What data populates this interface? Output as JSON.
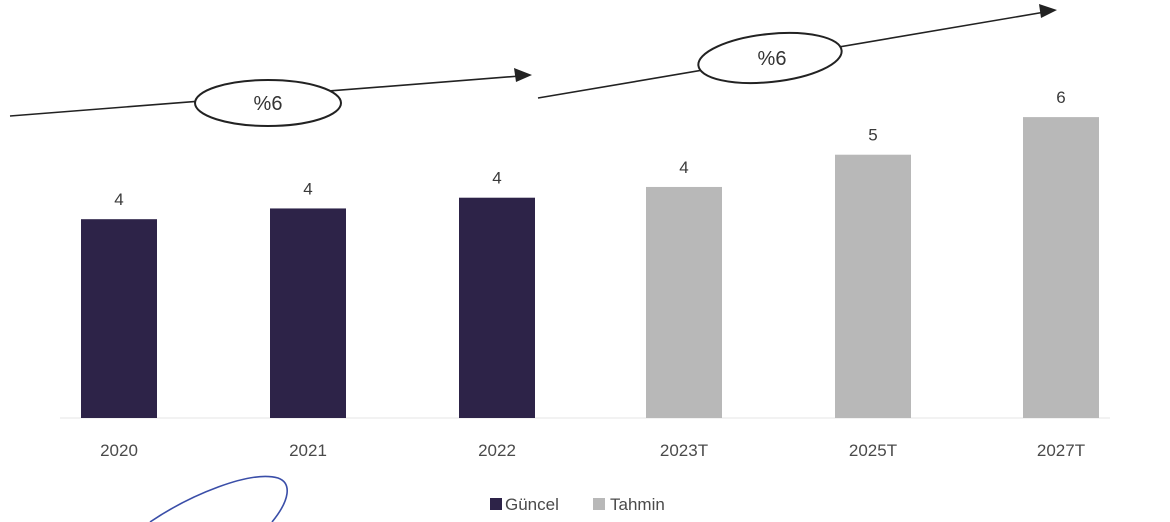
{
  "chart_data": {
    "type": "bar",
    "categories": [
      "2020",
      "2021",
      "2022",
      "2023T",
      "2025T",
      "2027T"
    ],
    "values": [
      4,
      4,
      4,
      4,
      5,
      6
    ],
    "series_membership": [
      "Güncel",
      "Güncel",
      "Güncel",
      "Tahmin",
      "Tahmin",
      "Tahmin"
    ],
    "series": [
      {
        "name": "Güncel",
        "color": "#2d2348"
      },
      {
        "name": "Tahmin",
        "color": "#b8b8b8"
      }
    ],
    "title": "",
    "xlabel": "",
    "ylabel": "",
    "ylim": [
      0,
      6.7
    ],
    "grid": false,
    "legend": "bottom-center",
    "annotations": [
      {
        "text": "%6",
        "span": [
          "2020",
          "2022"
        ]
      },
      {
        "text": "%6",
        "span": [
          "2023T",
          "2027T"
        ]
      }
    ]
  }
}
